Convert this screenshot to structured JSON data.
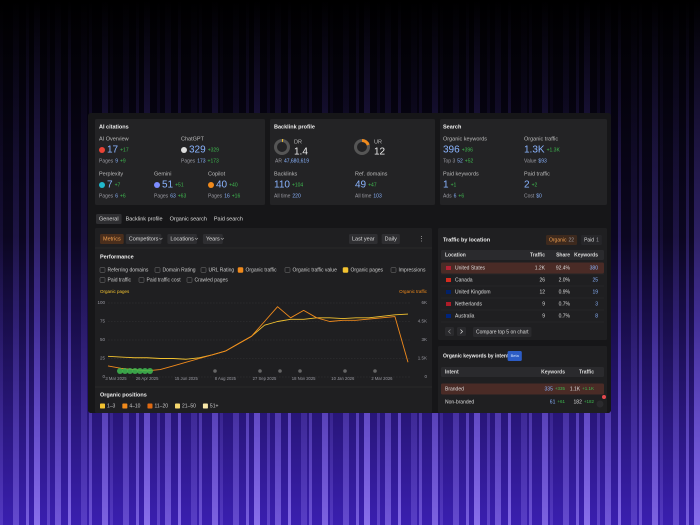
{
  "ai_citations": {
    "title": "AI citations",
    "items": [
      {
        "label": "AI Overview",
        "value": "17",
        "change": "+17",
        "pages_label": "Pages",
        "pages": "9",
        "pages_change": "+9"
      },
      {
        "label": "ChatGPT",
        "value": "329",
        "change": "+329",
        "pages_label": "Pages",
        "pages": "173",
        "pages_change": "+173"
      },
      {
        "label": "Perplexity",
        "value": "7",
        "change": "+7",
        "pages_label": "Pages",
        "pages": "6",
        "pages_change": "+6"
      },
      {
        "label": "Gemini",
        "value": "51",
        "change": "+51",
        "pages_label": "Pages",
        "pages": "63",
        "pages_change": "+63"
      },
      {
        "label": "Copilot",
        "value": "40",
        "change": "+40",
        "pages_label": "Pages",
        "pages": "16",
        "pages_change": "+16"
      }
    ]
  },
  "backlink_profile": {
    "title": "Backlink profile",
    "dr": {
      "label": "DR",
      "value": "1.4",
      "ar_label": "AR",
      "ar": "47,680,619"
    },
    "ur": {
      "label": "UR",
      "value": "12"
    },
    "stats": [
      {
        "label": "Backlinks",
        "value": "110",
        "change": "+104",
        "sub_label": "All time",
        "sub": "220"
      },
      {
        "label": "Ref. domains",
        "value": "49",
        "change": "+47",
        "sub_label": "All time",
        "sub": "103"
      }
    ]
  },
  "search": {
    "title": "Search",
    "items": [
      {
        "label": "Organic keywords",
        "value": "396",
        "change": "+396",
        "sub_label": "Top 3",
        "sub": "52",
        "sub_change": "+52"
      },
      {
        "label": "Organic traffic",
        "value": "1.3K",
        "change": "+1.3K",
        "sub_label": "Value",
        "sub": "$93"
      },
      {
        "label": "Paid keywords",
        "value": "1",
        "change": "+1",
        "sub_label": "Ads",
        "sub": "6",
        "sub_change": "+6"
      },
      {
        "label": "Paid traffic",
        "value": "2",
        "change": "+2",
        "sub_label": "Cost",
        "sub": "$0"
      }
    ]
  },
  "tabs": [
    "General",
    "Backlink profile",
    "Organic search",
    "Paid search"
  ],
  "toolbar": {
    "left": [
      "Metrics",
      "Competitors",
      "Locations",
      "Years"
    ],
    "right": [
      "Last year",
      "Daily"
    ]
  },
  "performance": {
    "title": "Performance",
    "metrics": [
      {
        "label": "Referring domains",
        "checked": false
      },
      {
        "label": "Domain Rating",
        "checked": false
      },
      {
        "label": "URL Rating",
        "checked": false
      },
      {
        "label": "Organic traffic",
        "checked": true,
        "color": "#f08a1c"
      },
      {
        "label": "Organic traffic value",
        "checked": false
      },
      {
        "label": "Organic pages",
        "checked": true,
        "color": "#f2c230"
      },
      {
        "label": "Impressions",
        "checked": false
      },
      {
        "label": "Paid traffic",
        "checked": false
      },
      {
        "label": "Paid traffic cost",
        "checked": false
      },
      {
        "label": "Crawled pages",
        "checked": false
      }
    ]
  },
  "organic_positions": {
    "title": "Organic positions",
    "ranges": [
      {
        "label": "1–3",
        "color": "#f2c230"
      },
      {
        "label": "4–10",
        "color": "#f08a1c"
      },
      {
        "label": "11–20",
        "color": "#e06a12"
      },
      {
        "label": "21–50",
        "color": "#f5d76e"
      },
      {
        "label": "51+",
        "color": "#f7e6a8"
      }
    ]
  },
  "traffic_by_location": {
    "title": "Traffic by location",
    "tabs": [
      {
        "label": "Organic",
        "count": "22"
      },
      {
        "label": "Paid",
        "count": "1"
      }
    ],
    "columns": [
      "Location",
      "Traffic",
      "Share",
      "Keywords"
    ],
    "rows": [
      [
        "United States",
        "1.2K",
        "92.4%",
        "380"
      ],
      [
        "Canada",
        "26",
        "2.0%",
        "25"
      ],
      [
        "United Kingdom",
        "12",
        "0.9%",
        "19"
      ],
      [
        "Netherlands",
        "9",
        "0.7%",
        "3"
      ],
      [
        "Australia",
        "9",
        "0.7%",
        "8"
      ]
    ],
    "compare": "Compare top 5 on chart"
  },
  "keywords_by_intent": {
    "title": "Organic keywords by intent",
    "badge": "Beta",
    "columns": [
      "Intent",
      "Keywords",
      "Traffic"
    ],
    "rows": [
      {
        "intent": "Branded",
        "keywords": "335",
        "keywords_change": "+335",
        "traffic": "1.1K",
        "traffic_change": "+1.1K"
      },
      {
        "intent": "Non-branded",
        "keywords": "61",
        "keywords_change": "+61",
        "traffic": "182",
        "traffic_change": "+182"
      }
    ]
  },
  "chart_data": {
    "type": "line",
    "grid": true,
    "categories": [
      "3 Mar 2025",
      null,
      null,
      "26 Apr 2025",
      null,
      null,
      "15 Jun 2025",
      null,
      null,
      "8 Aug 2025",
      null,
      null,
      "27 Sep 2025",
      null,
      null,
      "18 Nov 2025",
      null,
      null,
      "10 Jan 2026",
      null,
      null,
      "2 Mar 2026",
      null,
      null
    ],
    "series": [
      {
        "name": "Organic pages",
        "color": "#f2c230",
        "values": [
          28,
          27,
          26,
          26,
          25,
          25,
          24,
          26,
          30,
          35,
          45,
          55,
          70,
          75,
          78,
          78,
          80,
          80,
          79,
          80,
          80,
          82,
          84,
          85
        ]
      },
      {
        "name": "Organic traffic",
        "color": "#f08a1c",
        "axis": "y2",
        "values": [
          900,
          700,
          600,
          500,
          600,
          900,
          1200,
          1500,
          1800,
          2100,
          2700,
          3300,
          4500,
          5700,
          4800,
          5400,
          4800,
          4500,
          4600,
          4600,
          4700,
          4800,
          4900,
          1200
        ]
      }
    ],
    "ylim": [
      0,
      100
    ],
    "yticks": [
      0,
      25,
      50,
      75,
      100
    ],
    "y2lim": [
      0,
      6000
    ],
    "y2ticks": [
      0,
      {
        "value": 1500,
        "label": "1.5K"
      },
      {
        "value": 3000,
        "label": "3K"
      },
      {
        "value": 4500,
        "label": "4.5K"
      },
      {
        "value": 6000,
        "label": "6K"
      }
    ]
  }
}
